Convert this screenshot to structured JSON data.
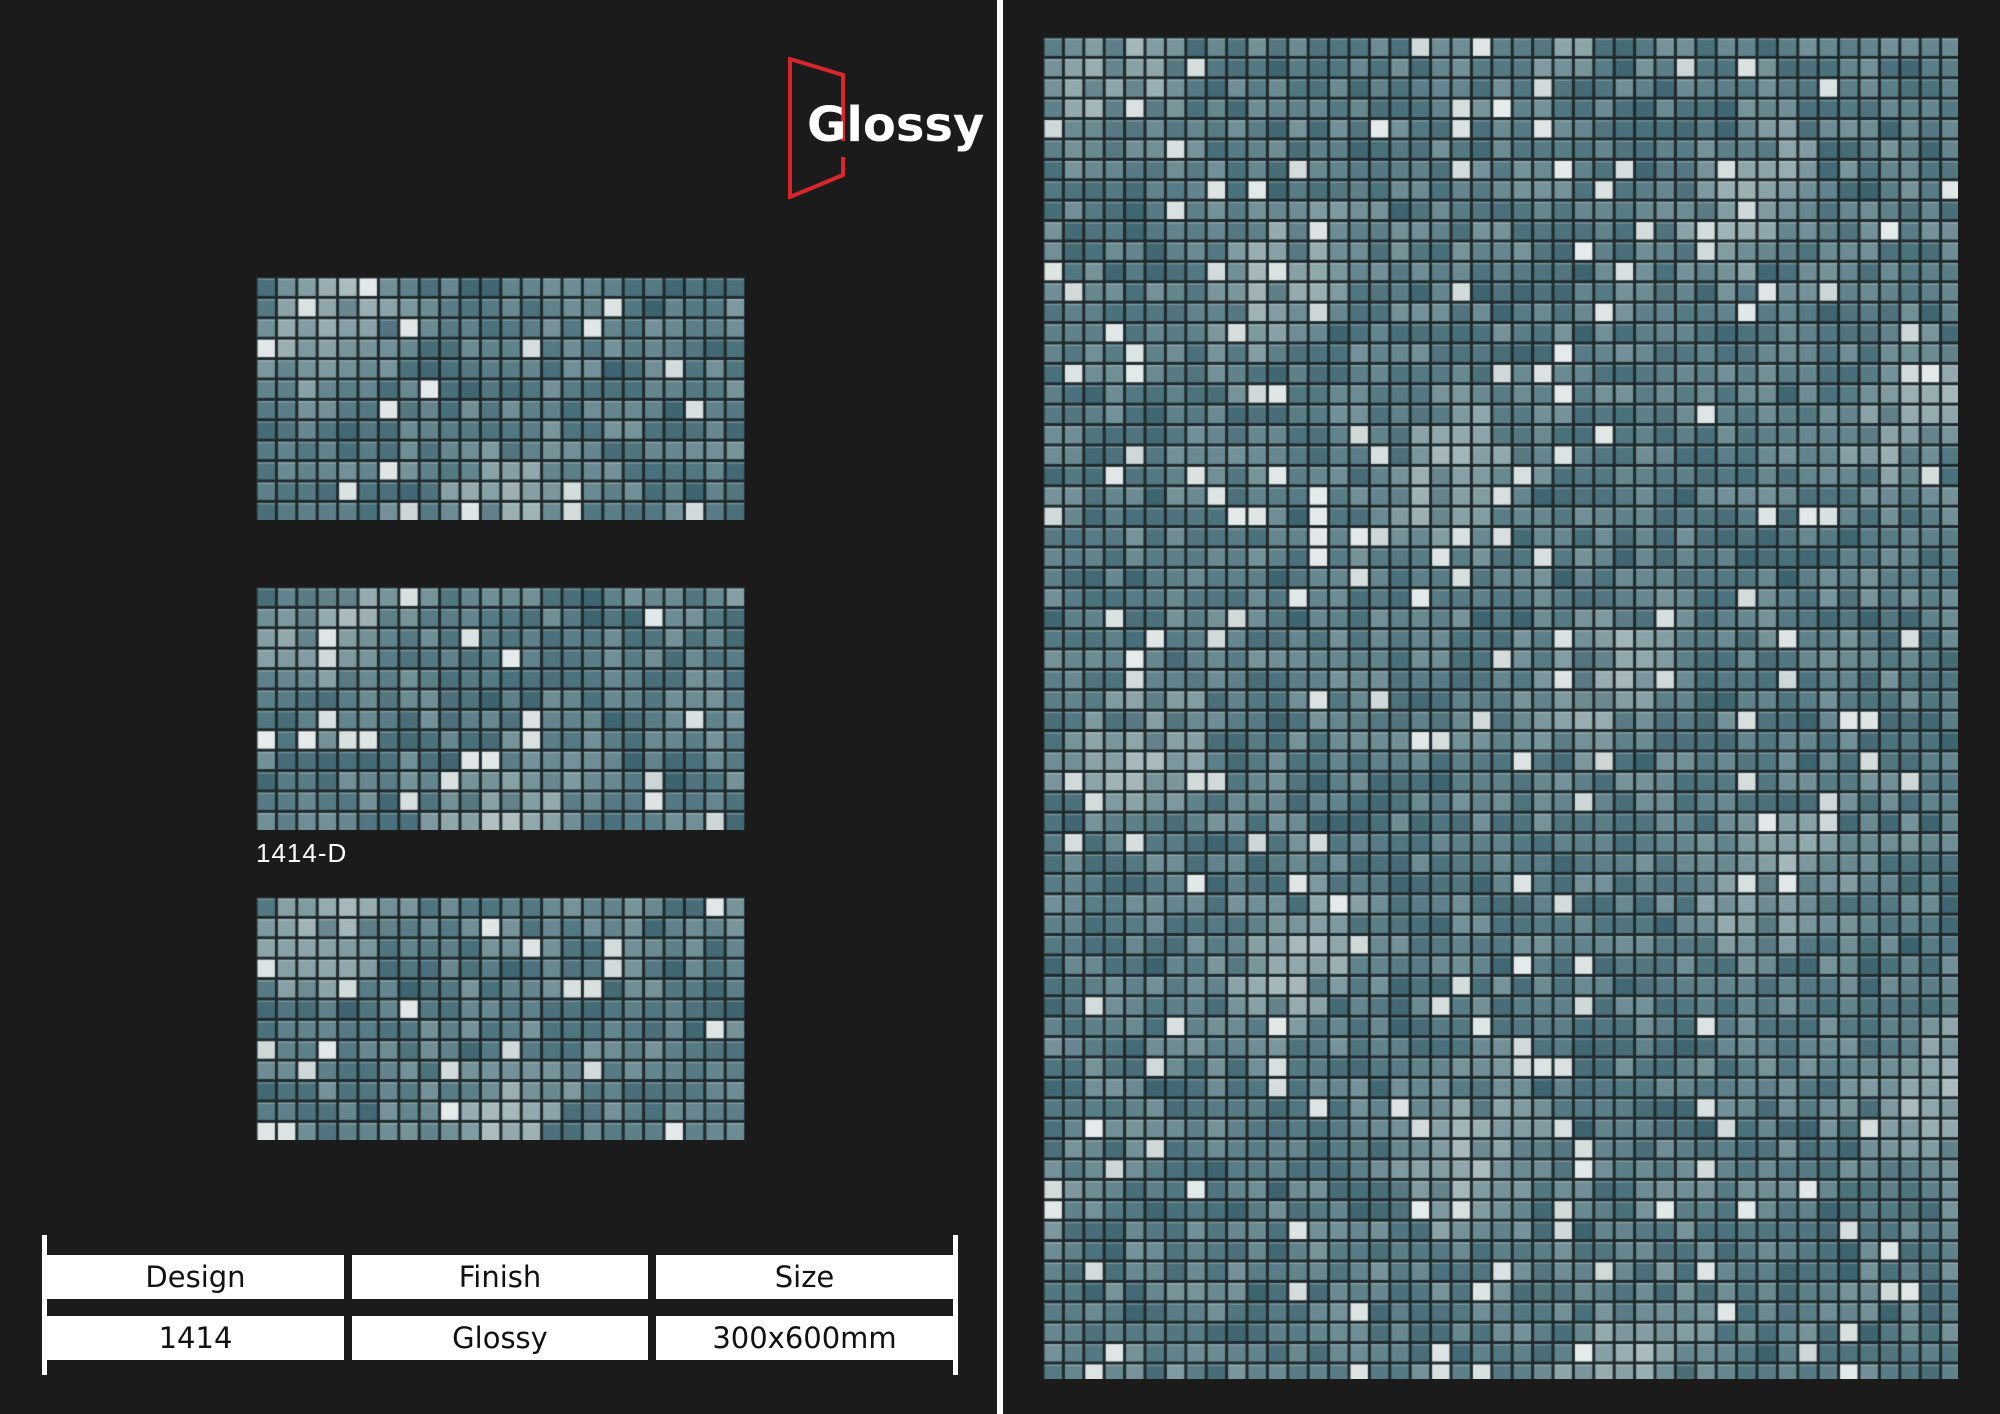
{
  "brand": {
    "logo_text": "Glossy",
    "accent_color": "#d9262b"
  },
  "product": {
    "variant_label": "1414-D"
  },
  "spec_table": {
    "headers": [
      "Design",
      "Finish",
      "Size"
    ],
    "values": [
      "1414",
      "Glossy",
      "300x600mm"
    ]
  },
  "colors": {
    "background": "#1b1b1b",
    "tile_base": "#4f7a84",
    "tile_light": "#c9d3d3",
    "grout": "#1e2a2d"
  }
}
